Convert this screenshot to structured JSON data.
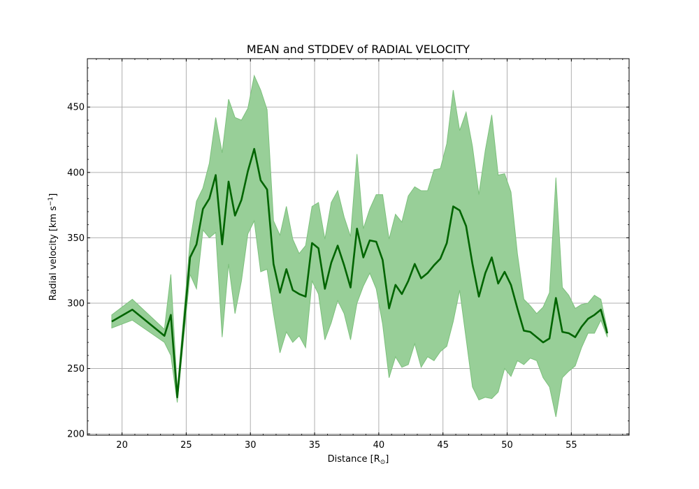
{
  "chart_data": {
    "type": "line",
    "title": "MEAN and STDDEV of RADIAL VELOCITY",
    "xlabel": "Distance [R",
    "xlabel_sub": "⊙",
    "xlabel_end": "]",
    "ylabel": "Radial velocity [km s",
    "ylabel_sup": "−1",
    "ylabel_end": "]",
    "xlim": [
      17.3,
      59.5
    ],
    "ylim": [
      199,
      487
    ],
    "x_ticks": [
      20,
      25,
      30,
      35,
      40,
      45,
      50,
      55
    ],
    "y_ticks": [
      200,
      250,
      300,
      350,
      400,
      450
    ],
    "grid": true,
    "colors": {
      "line": "#006400",
      "band": "#98cf98",
      "band_edge": "#7cc07c",
      "grid": "#b0b0b0"
    },
    "series": [
      {
        "x": [
          19.2,
          20.8,
          23.3,
          23.8,
          24.3,
          25.3,
          25.8,
          26.3,
          26.8,
          27.3,
          27.8,
          28.3,
          28.8,
          29.3,
          29.8,
          30.3,
          30.8,
          31.3,
          31.8,
          32.3,
          32.8,
          33.3,
          33.8,
          34.3,
          34.8,
          35.3,
          35.8,
          36.3,
          36.8,
          37.3,
          37.8,
          38.3,
          38.8,
          39.3,
          39.8,
          40.3,
          40.8,
          41.3,
          41.8,
          42.3,
          42.8,
          43.3,
          43.8,
          44.3,
          44.8,
          45.3,
          45.8,
          46.3,
          46.8,
          47.3,
          47.8,
          48.3,
          48.8,
          49.3,
          49.8,
          50.3,
          50.8,
          51.3,
          51.8,
          52.3,
          52.8,
          53.3,
          53.8,
          54.3,
          54.8,
          55.3,
          55.8,
          56.3,
          56.8,
          57.3,
          57.8
        ],
        "mean": [
          286,
          295,
          275,
          291,
          228,
          335,
          345,
          372,
          380,
          398,
          345,
          393,
          367,
          379,
          401,
          418,
          394,
          387,
          330,
          308,
          326,
          310,
          307,
          305,
          346,
          342,
          311,
          331,
          344,
          329,
          312,
          357,
          335,
          348,
          347,
          333,
          296,
          314,
          307,
          317,
          330,
          319,
          323,
          329,
          334,
          346,
          374,
          371,
          359,
          330,
          305,
          323,
          335,
          315,
          324,
          314,
          296,
          279,
          278,
          274,
          270,
          273,
          304,
          278,
          277,
          274,
          282,
          288,
          291,
          295,
          277
        ],
        "upper": [
          291,
          303,
          280,
          322,
          234,
          347,
          378,
          388,
          407,
          442,
          415,
          456,
          442,
          440,
          449,
          474,
          463,
          448,
          363,
          352,
          374,
          349,
          338,
          344,
          374,
          377,
          349,
          377,
          386,
          366,
          351,
          414,
          357,
          372,
          383,
          383,
          349,
          368,
          362,
          382,
          389,
          386,
          386,
          402,
          403,
          422,
          463,
          432,
          446,
          420,
          383,
          417,
          444,
          398,
          399,
          385,
          338,
          303,
          298,
          292,
          297,
          308,
          396,
          312,
          306,
          296,
          299,
          300,
          306,
          303,
          280
        ],
        "lower": [
          281,
          287,
          270,
          260,
          224,
          322,
          311,
          356,
          350,
          354,
          274,
          330,
          292,
          317,
          353,
          363,
          324,
          326,
          292,
          262,
          278,
          270,
          275,
          266,
          317,
          307,
          272,
          285,
          302,
          292,
          272,
          300,
          313,
          323,
          311,
          284,
          243,
          259,
          251,
          253,
          269,
          251,
          259,
          256,
          263,
          267,
          286,
          310,
          273,
          236,
          226,
          228,
          227,
          232,
          250,
          244,
          256,
          253,
          258,
          256,
          243,
          236,
          213,
          243,
          248,
          252,
          266,
          277,
          277,
          287,
          274
        ]
      }
    ]
  }
}
